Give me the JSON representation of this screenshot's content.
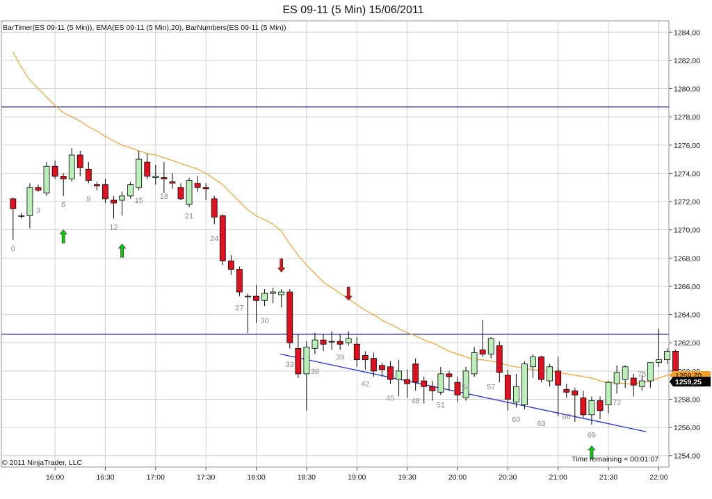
{
  "window": {
    "title": "ES 09-11 (5 Min)  15/06/2011",
    "indicators": "BarTimer(ES 09-11 (5 Min)), EMA(ES 09-11 (5 Min),20), BarNumbers(ES 09-11 (5 Min))",
    "copyright": "© 2011 NinjaTrader, LLC",
    "time_remaining": "Time remaining = 00:01:07"
  },
  "colors": {
    "up": "#b9f0b9",
    "down": "#e0101e",
    "ema": "#f0a030",
    "hline": "#00007f",
    "trendline": "#1f2fd8",
    "grid": "#cfcfcf",
    "arrow_up": "#00d000",
    "arrow_down": "#e01010"
  },
  "chart_data": {
    "type": "candlestick",
    "title": "ES 09-11 (5 Min)  15/06/2011",
    "ylim": [
      1253.2,
      1284.8
    ],
    "y_ticks": [
      "1284,00",
      "1282,00",
      "1280,00",
      "1278,00",
      "1276,00",
      "1274,00",
      "1272,00",
      "1270,00",
      "1268,00",
      "1266,00",
      "1264,00",
      "1262,00",
      "1260,00",
      "1258,00",
      "1256,00",
      "1254,00"
    ],
    "y_tick_values": [
      1284,
      1282,
      1280,
      1278,
      1276,
      1274,
      1272,
      1270,
      1268,
      1266,
      1264,
      1262,
      1260,
      1258,
      1256,
      1254
    ],
    "x_ticks": [
      "16:00",
      "16:30",
      "17:00",
      "17:30",
      "18:00",
      "18:30",
      "19:00",
      "19:30",
      "20:00",
      "20:30",
      "21:00",
      "21:30",
      "22:00"
    ],
    "x_tick_bars": [
      5,
      11,
      17,
      23,
      29,
      35,
      41,
      47,
      53,
      59,
      65,
      71,
      77
    ],
    "candles": [
      [
        1272.2,
        1272.3,
        1269.3,
        1271.5
      ],
      [
        1271.0,
        1271.2,
        1270.8,
        1271.0
      ],
      [
        1271.0,
        1273.3,
        1270.1,
        1273.0
      ],
      [
        1273.0,
        1273.2,
        1272.7,
        1272.8
      ],
      [
        1272.6,
        1274.8,
        1272.4,
        1274.5
      ],
      [
        1274.5,
        1274.9,
        1273.6,
        1273.8
      ],
      [
        1273.8,
        1274.0,
        1272.4,
        1273.6
      ],
      [
        1273.6,
        1275.8,
        1273.4,
        1275.3
      ],
      [
        1275.3,
        1275.6,
        1273.8,
        1274.4
      ],
      [
        1274.3,
        1274.8,
        1273.3,
        1273.5
      ],
      [
        1273.2,
        1273.4,
        1272.8,
        1273.1
      ],
      [
        1273.2,
        1273.6,
        1271.9,
        1272.2
      ],
      [
        1272.1,
        1272.4,
        1270.8,
        1271.9
      ],
      [
        1272.1,
        1272.7,
        1271.0,
        1272.4
      ],
      [
        1272.4,
        1273.4,
        1272.2,
        1273.2
      ],
      [
        1273.0,
        1275.6,
        1272.8,
        1275.0
      ],
      [
        1274.8,
        1275.4,
        1273.6,
        1273.8
      ],
      [
        1273.7,
        1274.6,
        1273.2,
        1273.8
      ],
      [
        1273.7,
        1274.8,
        1272.6,
        1273.6
      ],
      [
        1273.4,
        1274.0,
        1272.9,
        1273.3
      ],
      [
        1273.0,
        1273.3,
        1272.1,
        1272.2
      ],
      [
        1271.8,
        1273.7,
        1271.6,
        1273.5
      ],
      [
        1273.3,
        1273.8,
        1272.7,
        1273.0
      ],
      [
        1273.0,
        1273.3,
        1272.1,
        1272.9
      ],
      [
        1272.2,
        1272.4,
        1270.4,
        1270.9
      ],
      [
        1271.0,
        1271.1,
        1267.5,
        1267.8
      ],
      [
        1267.8,
        1268.2,
        1266.8,
        1267.2
      ],
      [
        1267.2,
        1267.4,
        1265.3,
        1265.6
      ],
      [
        1265.3,
        1265.5,
        1262.7,
        1265.3
      ],
      [
        1265.3,
        1266.1,
        1263.4,
        1265.0
      ],
      [
        1265.0,
        1265.8,
        1264.6,
        1265.5
      ],
      [
        1265.5,
        1265.9,
        1264.8,
        1265.6
      ],
      [
        1265.4,
        1265.8,
        1264.5,
        1265.6
      ],
      [
        1265.6,
        1265.8,
        1261.6,
        1262.0
      ],
      [
        1261.6,
        1262.6,
        1259.5,
        1259.8
      ],
      [
        1259.8,
        1262.1,
        1257.2,
        1261.7
      ],
      [
        1261.6,
        1262.7,
        1261.2,
        1262.2
      ],
      [
        1262.2,
        1262.6,
        1261.4,
        1261.9
      ],
      [
        1262.1,
        1262.8,
        1261.5,
        1262.1
      ],
      [
        1262.1,
        1262.6,
        1261.5,
        1261.9
      ],
      [
        1262.0,
        1262.8,
        1261.8,
        1262.3
      ],
      [
        1261.9,
        1262.4,
        1260.3,
        1260.8
      ],
      [
        1261.1,
        1261.4,
        1260.1,
        1260.8
      ],
      [
        1260.9,
        1261.3,
        1259.6,
        1260.0
      ],
      [
        1260.4,
        1260.6,
        1259.6,
        1260.1
      ],
      [
        1260.3,
        1260.7,
        1259.1,
        1259.4
      ],
      [
        1259.4,
        1260.8,
        1258.2,
        1260.0
      ],
      [
        1259.4,
        1260.1,
        1258.1,
        1259.1
      ],
      [
        1260.5,
        1260.9,
        1258.6,
        1259.2
      ],
      [
        1259.3,
        1259.6,
        1257.7,
        1258.9
      ],
      [
        1258.9,
        1259.3,
        1257.9,
        1258.6
      ],
      [
        1258.5,
        1260.3,
        1258.3,
        1259.8
      ],
      [
        1259.8,
        1260.0,
        1258.6,
        1259.6
      ],
      [
        1259.2,
        1259.6,
        1257.8,
        1258.3
      ],
      [
        1258.1,
        1260.3,
        1257.9,
        1260.0
      ],
      [
        1259.8,
        1261.7,
        1259.6,
        1261.3
      ],
      [
        1261.5,
        1263.6,
        1261.0,
        1261.2
      ],
      [
        1261.2,
        1262.4,
        1260.9,
        1262.3
      ],
      [
        1261.8,
        1262.1,
        1259.2,
        1259.9
      ],
      [
        1259.7,
        1260.1,
        1257.2,
        1258.0
      ],
      [
        1257.8,
        1259.8,
        1257.4,
        1258.9
      ],
      [
        1257.6,
        1260.7,
        1257.3,
        1260.5
      ],
      [
        1260.3,
        1261.2,
        1259.5,
        1261.0
      ],
      [
        1261.0,
        1261.1,
        1259.2,
        1259.4
      ],
      [
        1259.3,
        1260.5,
        1258.9,
        1260.3
      ],
      [
        1260.0,
        1261.0,
        1256.8,
        1259.0
      ],
      [
        1258.7,
        1259.1,
        1258.1,
        1258.5
      ],
      [
        1258.6,
        1258.8,
        1256.4,
        1258.3
      ],
      [
        1258.1,
        1258.6,
        1256.7,
        1256.9
      ],
      [
        1256.9,
        1258.2,
        1256.2,
        1257.9
      ],
      [
        1257.9,
        1258.2,
        1256.6,
        1257.2
      ],
      [
        1257.6,
        1259.3,
        1257.0,
        1259.2
      ],
      [
        1259.1,
        1260.4,
        1258.4,
        1259.9
      ],
      [
        1259.4,
        1260.4,
        1258.8,
        1260.3
      ],
      [
        1259.5,
        1259.8,
        1258.2,
        1259.0
      ],
      [
        1258.9,
        1259.7,
        1258.6,
        1259.3
      ],
      [
        1259.3,
        1260.6,
        1258.8,
        1260.6
      ],
      [
        1260.6,
        1263.0,
        1260.3,
        1260.8
      ],
      [
        1260.8,
        1261.6,
        1260.5,
        1261.4
      ],
      [
        1261.4,
        1261.5,
        1259.1,
        1259.4
      ],
      [
        1259.5,
        1259.7,
        1259.1,
        1259.3
      ]
    ],
    "ema": [
      1282.6,
      1281.5,
      1280.6,
      1280.0,
      1279.4,
      1278.8,
      1278.3,
      1278.0,
      1277.7,
      1277.3,
      1277.0,
      1276.6,
      1276.3,
      1276.0,
      1275.8,
      1275.6,
      1275.4,
      1275.3,
      1275.1,
      1274.9,
      1274.7,
      1274.5,
      1274.3,
      1274.0,
      1273.6,
      1273.2,
      1272.6,
      1272.0,
      1271.4,
      1271.0,
      1270.7,
      1270.4,
      1269.9,
      1269.0,
      1268.2,
      1267.5,
      1266.9,
      1266.3,
      1265.9,
      1265.5,
      1265.1,
      1264.7,
      1264.3,
      1264.0,
      1263.6,
      1263.3,
      1263.0,
      1262.7,
      1262.5,
      1262.2,
      1262.0,
      1261.7,
      1261.4,
      1261.2,
      1261.0,
      1260.8,
      1260.8,
      1260.7,
      1260.6,
      1260.4,
      1260.3,
      1260.2,
      1260.1,
      1260.0,
      1260.0,
      1259.9,
      1259.8,
      1259.7,
      1259.6,
      1259.5,
      1259.3,
      1259.2,
      1259.2,
      1259.1,
      1259.1,
      1259.2,
      1259.3,
      1259.5,
      1259.7,
      1259.7,
      1259.6
    ],
    "bar_numbers": [
      {
        "bar": 0,
        "label": "0",
        "y": 1268.5
      },
      {
        "bar": 3,
        "label": "3",
        "y": 1271.2
      },
      {
        "bar": 6,
        "label": "6",
        "y": 1271.6
      },
      {
        "bar": 9,
        "label": "9",
        "y": 1272.0
      },
      {
        "bar": 12,
        "label": "12",
        "y": 1270.0
      },
      {
        "bar": 15,
        "label": "15",
        "y": 1271.9
      },
      {
        "bar": 18,
        "label": "18",
        "y": 1272.2
      },
      {
        "bar": 21,
        "label": "21",
        "y": 1270.8
      },
      {
        "bar": 24,
        "label": "24",
        "y": 1269.2
      },
      {
        "bar": 27,
        "label": "27",
        "y": 1264.3
      },
      {
        "bar": 30,
        "label": "30",
        "y": 1263.4
      },
      {
        "bar": 33,
        "label": "33",
        "y": 1260.3
      },
      {
        "bar": 36,
        "label": "36",
        "y": 1259.8
      },
      {
        "bar": 39,
        "label": "39",
        "y": 1260.8
      },
      {
        "bar": 42,
        "label": "42",
        "y": 1258.9
      },
      {
        "bar": 45,
        "label": "45",
        "y": 1257.9
      },
      {
        "bar": 48,
        "label": "48",
        "y": 1257.7
      },
      {
        "bar": 51,
        "label": "51",
        "y": 1257.4
      },
      {
        "bar": 54,
        "label": "54",
        "y": 1258.7
      },
      {
        "bar": 57,
        "label": "57",
        "y": 1258.7
      },
      {
        "bar": 60,
        "label": "60",
        "y": 1256.4
      },
      {
        "bar": 63,
        "label": "63",
        "y": 1256.1
      },
      {
        "bar": 66,
        "label": "66",
        "y": 1256.6
      },
      {
        "bar": 69,
        "label": "69",
        "y": 1255.3
      },
      {
        "bar": 72,
        "label": "72",
        "y": 1257.6
      },
      {
        "bar": 75,
        "label": "75",
        "y": 1259.6
      }
    ],
    "arrows": [
      {
        "bar": 6,
        "dir": "up",
        "y": 1269.5
      },
      {
        "bar": 13,
        "dir": "up",
        "y": 1268.5
      },
      {
        "bar": 32,
        "dir": "down",
        "y": 1267.5
      },
      {
        "bar": 40,
        "dir": "down",
        "y": 1265.5
      },
      {
        "bar": 69,
        "dir": "up",
        "y": 1254.2
      }
    ],
    "hlines": [
      1278.7,
      1262.6
    ],
    "trendline": {
      "x1": 31.9,
      "y1": 1261.2,
      "x2": 75.5,
      "y2": 1255.7
    },
    "last_price": {
      "current": "1259,25",
      "prev": "1259,70",
      "current_value": 1259.25,
      "prev_value": 1259.7
    }
  }
}
